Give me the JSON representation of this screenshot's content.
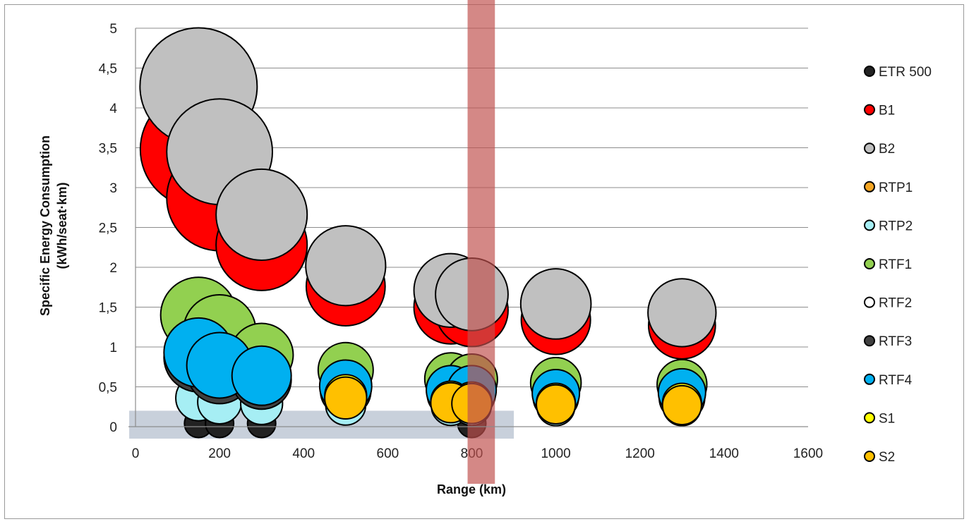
{
  "chart_data": {
    "type": "scatter",
    "subtype": "bubble",
    "title": "",
    "xlabel": "Range (km)",
    "ylabel_line1": "Specific Energy Consumption",
    "ylabel_line2": "(kWh/seat·km)",
    "xlim": [
      0,
      1600
    ],
    "ylim": [
      0,
      5
    ],
    "x_ticks": [
      "0",
      "200",
      "400",
      "600",
      "800",
      "1000",
      "1200",
      "1400",
      "1600"
    ],
    "y_ticks": [
      "0",
      "0,5",
      "1",
      "1,5",
      "2",
      "2,5",
      "3",
      "3,5",
      "4",
      "4,5",
      "5"
    ],
    "grid": "horizontal",
    "legend_position": "right",
    "highlight_vertical_band": {
      "x_from": 790,
      "x_to": 855,
      "color": "#c0504d"
    },
    "highlight_horizontal_band": {
      "x_from": -15,
      "x_to": 900,
      "y_from": -0.15,
      "y_to": 0.2,
      "color": "#8496b0"
    },
    "series": [
      {
        "name": "ETR 500",
        "color": "#222222",
        "points": [
          {
            "x": 150,
            "y": 0.04,
            "size": 0.5
          },
          {
            "x": 200,
            "y": 0.04,
            "size": 0.5
          },
          {
            "x": 300,
            "y": 0.04,
            "size": 0.5
          },
          {
            "x": 800,
            "y": 0.04,
            "size": 0.5
          }
        ]
      },
      {
        "name": "B1",
        "color": "#ff0000",
        "points": [
          {
            "x": 150,
            "y": 3.48,
            "size": 8.5
          },
          {
            "x": 200,
            "y": 2.87,
            "size": 7.0
          },
          {
            "x": 300,
            "y": 2.28,
            "size": 5.2
          },
          {
            "x": 500,
            "y": 1.76,
            "size": 3.9
          },
          {
            "x": 750,
            "y": 1.5,
            "size": 3.4
          },
          {
            "x": 800,
            "y": 1.46,
            "size": 3.3
          },
          {
            "x": 1000,
            "y": 1.34,
            "size": 3.0
          },
          {
            "x": 1300,
            "y": 1.27,
            "size": 2.8
          }
        ]
      },
      {
        "name": "B2",
        "color": "#c0c0c0",
        "points": [
          {
            "x": 150,
            "y": 4.27,
            "size": 8.6
          },
          {
            "x": 200,
            "y": 3.45,
            "size": 7.0
          },
          {
            "x": 300,
            "y": 2.66,
            "size": 5.2
          },
          {
            "x": 500,
            "y": 2.02,
            "size": 4.0
          },
          {
            "x": 750,
            "y": 1.71,
            "size": 3.4
          },
          {
            "x": 800,
            "y": 1.66,
            "size": 3.3
          },
          {
            "x": 1000,
            "y": 1.54,
            "size": 3.1
          },
          {
            "x": 1300,
            "y": 1.43,
            "size": 2.9
          }
        ]
      },
      {
        "name": "RTP1",
        "color": "#f5a623",
        "points": [
          {
            "x": 500,
            "y": 0.43,
            "size": 1.0
          },
          {
            "x": 750,
            "y": 0.35,
            "size": 0.9
          },
          {
            "x": 800,
            "y": 0.34,
            "size": 0.9
          },
          {
            "x": 1000,
            "y": 0.31,
            "size": 0.85
          },
          {
            "x": 1300,
            "y": 0.3,
            "size": 0.8
          }
        ]
      },
      {
        "name": "RTP2",
        "color": "#a6eef4",
        "points": [
          {
            "x": 150,
            "y": 0.36,
            "size": 1.3
          },
          {
            "x": 200,
            "y": 0.31,
            "size": 1.2
          },
          {
            "x": 300,
            "y": 0.29,
            "size": 1.1
          },
          {
            "x": 500,
            "y": 0.27,
            "size": 1.0
          },
          {
            "x": 750,
            "y": 0.26,
            "size": 0.95
          },
          {
            "x": 800,
            "y": 0.26,
            "size": 0.95
          },
          {
            "x": 1000,
            "y": 0.25,
            "size": 0.9
          },
          {
            "x": 1300,
            "y": 0.25,
            "size": 0.9
          }
        ]
      },
      {
        "name": "RTF1",
        "color": "#92d050",
        "points": [
          {
            "x": 150,
            "y": 1.4,
            "size": 3.6
          },
          {
            "x": 200,
            "y": 1.2,
            "size": 3.3
          },
          {
            "x": 300,
            "y": 0.9,
            "size": 2.5
          },
          {
            "x": 500,
            "y": 0.71,
            "size": 1.9
          },
          {
            "x": 750,
            "y": 0.6,
            "size": 1.7
          },
          {
            "x": 800,
            "y": 0.59,
            "size": 1.65
          },
          {
            "x": 1000,
            "y": 0.55,
            "size": 1.6
          },
          {
            "x": 1300,
            "y": 0.53,
            "size": 1.55
          }
        ]
      },
      {
        "name": "RTF2",
        "color": "#ffffff",
        "points": [
          {
            "x": 500,
            "y": 0.42,
            "size": 1.2
          },
          {
            "x": 750,
            "y": 0.38,
            "size": 1.1
          },
          {
            "x": 800,
            "y": 0.37,
            "size": 1.1
          },
          {
            "x": 1000,
            "y": 0.33,
            "size": 1.0
          },
          {
            "x": 1300,
            "y": 0.33,
            "size": 1.0
          }
        ]
      },
      {
        "name": "RTF3",
        "color": "#404040",
        "points": [
          {
            "x": 150,
            "y": 0.87,
            "size": 3.0
          },
          {
            "x": 200,
            "y": 0.7,
            "size": 2.7
          },
          {
            "x": 300,
            "y": 0.59,
            "size": 2.2
          },
          {
            "x": 500,
            "y": 0.45,
            "size": 1.6
          },
          {
            "x": 750,
            "y": 0.41,
            "size": 1.4
          },
          {
            "x": 800,
            "y": 0.41,
            "size": 1.4
          },
          {
            "x": 1000,
            "y": 0.37,
            "size": 1.3
          },
          {
            "x": 1300,
            "y": 0.36,
            "size": 1.3
          }
        ]
      },
      {
        "name": "RTF4",
        "color": "#00b0f0",
        "points": [
          {
            "x": 150,
            "y": 0.93,
            "size": 3.0
          },
          {
            "x": 200,
            "y": 0.77,
            "size": 2.7
          },
          {
            "x": 300,
            "y": 0.64,
            "size": 2.2
          },
          {
            "x": 500,
            "y": 0.51,
            "size": 1.7
          },
          {
            "x": 750,
            "y": 0.46,
            "size": 1.5
          },
          {
            "x": 800,
            "y": 0.46,
            "size": 1.5
          },
          {
            "x": 1000,
            "y": 0.42,
            "size": 1.4
          },
          {
            "x": 1300,
            "y": 0.43,
            "size": 1.4
          }
        ]
      },
      {
        "name": "S1",
        "color": "#ffff00",
        "points": [
          {
            "x": 500,
            "y": 0.39,
            "size": 1.1
          },
          {
            "x": 750,
            "y": 0.32,
            "size": 1.0
          },
          {
            "x": 800,
            "y": 0.31,
            "size": 1.0
          },
          {
            "x": 1000,
            "y": 0.3,
            "size": 0.95
          },
          {
            "x": 1300,
            "y": 0.3,
            "size": 0.95
          }
        ]
      },
      {
        "name": "S2",
        "color": "#ffc000",
        "points": [
          {
            "x": 500,
            "y": 0.36,
            "size": 1.1
          },
          {
            "x": 750,
            "y": 0.3,
            "size": 1.0
          },
          {
            "x": 800,
            "y": 0.29,
            "size": 1.0
          },
          {
            "x": 1000,
            "y": 0.28,
            "size": 0.95
          },
          {
            "x": 1300,
            "y": 0.27,
            "size": 0.95
          }
        ]
      }
    ]
  }
}
